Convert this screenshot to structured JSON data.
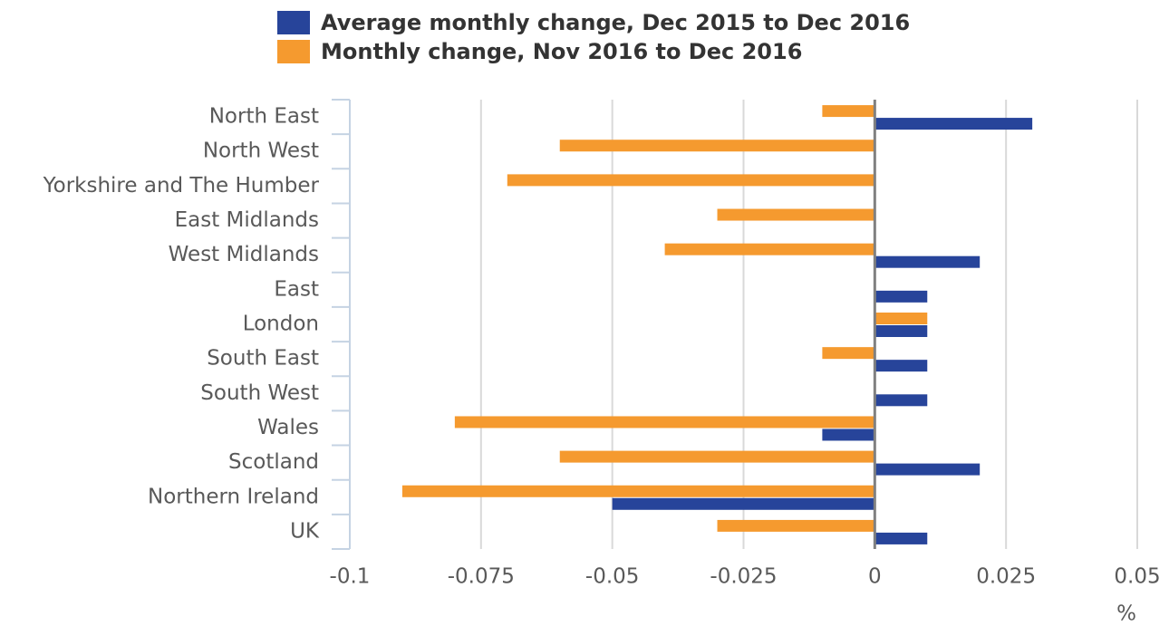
{
  "chart_data": {
    "type": "bar",
    "orientation": "horizontal",
    "categories": [
      "North East",
      "North West",
      "Yorkshire and The Humber",
      "East Midlands",
      "West Midlands",
      "East",
      "London",
      "South East",
      "South West",
      "Wales",
      "Scotland",
      "Northern Ireland",
      "UK"
    ],
    "series": [
      {
        "name": "Average monthly change, Dec 2015 to Dec 2016",
        "color": "#27449a",
        "values": [
          0.03,
          0,
          0,
          0,
          0.02,
          0.01,
          0.01,
          0.01,
          0.01,
          -0.01,
          0.02,
          -0.05,
          0.01
        ]
      },
      {
        "name": "Monthly change, Nov 2016 to Dec 2016",
        "color": "#f59a2f",
        "values": [
          -0.01,
          -0.06,
          -0.07,
          -0.03,
          -0.04,
          0,
          0.01,
          -0.01,
          0,
          -0.08,
          -0.06,
          -0.09,
          -0.03
        ]
      }
    ],
    "xlim": [
      -0.1,
      0.05
    ],
    "xticks": [
      -0.1,
      -0.075,
      -0.05,
      -0.025,
      0,
      0.025,
      0.05
    ],
    "xlabel": "%",
    "grid": true
  }
}
